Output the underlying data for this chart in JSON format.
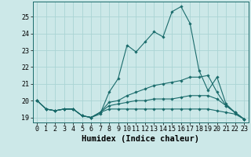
{
  "xlabel": "Humidex (Indice chaleur)",
  "ylabel": "",
  "xlim": [
    -0.5,
    23.5
  ],
  "ylim": [
    18.7,
    25.9
  ],
  "bg_color": "#cce8e8",
  "line_color": "#1a6b6b",
  "grid_color": "#aad4d4",
  "lines": [
    [
      20.0,
      19.5,
      19.4,
      19.5,
      19.5,
      19.1,
      19.0,
      19.2,
      20.5,
      21.3,
      23.3,
      22.9,
      23.5,
      24.1,
      23.8,
      25.3,
      25.6,
      24.6,
      21.8,
      20.6,
      21.4,
      19.8,
      19.3,
      18.9
    ],
    [
      20.0,
      19.5,
      19.4,
      19.5,
      19.5,
      19.1,
      19.0,
      19.3,
      19.9,
      20.0,
      20.3,
      20.5,
      20.7,
      20.9,
      21.0,
      21.1,
      21.2,
      21.4,
      21.4,
      21.5,
      20.5,
      19.7,
      19.3,
      18.9
    ],
    [
      20.0,
      19.5,
      19.4,
      19.5,
      19.5,
      19.1,
      19.0,
      19.3,
      19.7,
      19.8,
      19.9,
      20.0,
      20.0,
      20.1,
      20.1,
      20.1,
      20.2,
      20.3,
      20.3,
      20.3,
      20.1,
      19.7,
      19.3,
      18.9
    ],
    [
      20.0,
      19.5,
      19.4,
      19.5,
      19.5,
      19.1,
      19.0,
      19.3,
      19.5,
      19.5,
      19.5,
      19.5,
      19.5,
      19.5,
      19.5,
      19.5,
      19.5,
      19.5,
      19.5,
      19.5,
      19.4,
      19.3,
      19.2,
      18.9
    ]
  ],
  "xticks": [
    0,
    1,
    2,
    3,
    4,
    5,
    6,
    7,
    8,
    9,
    10,
    11,
    12,
    13,
    14,
    15,
    16,
    17,
    18,
    19,
    20,
    21,
    22,
    23
  ],
  "yticks": [
    19,
    20,
    21,
    22,
    23,
    24,
    25
  ],
  "tick_fontsize": 6.0,
  "label_fontsize": 7.5
}
